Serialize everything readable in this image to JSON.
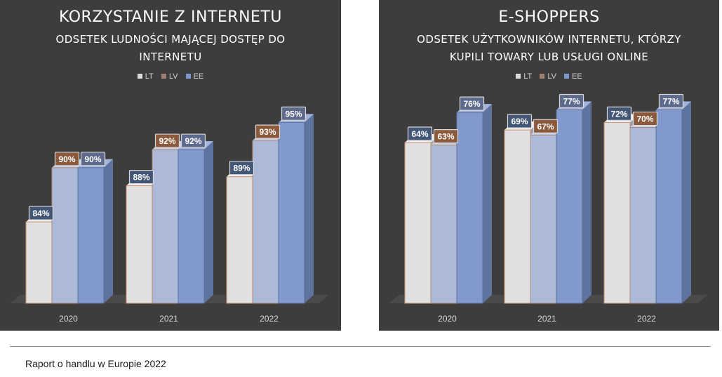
{
  "footer": {
    "source": "Raport o handlu w Europie 2022"
  },
  "colors": {
    "LT": "#dcdcdc",
    "LV": "#a9b7d6",
    "EE": "#7f98cc",
    "LV_label": "#8b5a3c",
    "label_dark": "#3e4c66"
  },
  "chart_data": [
    {
      "type": "bar",
      "title": "KORZYSTANIE Z INTERNETU",
      "subtitle": "ODSETEK LUDNOŚCI MAJĄCEJ DOSTĘP DO INTERNETU",
      "categories": [
        "2020",
        "2021",
        "2022"
      ],
      "series": [
        {
          "name": "LT",
          "values": [
            84,
            88,
            89
          ]
        },
        {
          "name": "LV",
          "values": [
            90,
            92,
            93
          ]
        },
        {
          "name": "EE",
          "values": [
            90,
            92,
            95
          ]
        }
      ],
      "value_suffix": "%",
      "ylim": [
        75,
        100
      ],
      "legend": "top",
      "grid": false,
      "style": "3d-clustered-column"
    },
    {
      "type": "bar",
      "title": "E-SHOPPERS",
      "subtitle": "ODSETEK UŻYTKOWNIKÓW INTERNETU, KTÓRZY KUPILI TOWARY LUB USŁUGI ONLINE",
      "categories": [
        "2020",
        "2021",
        "2022"
      ],
      "series": [
        {
          "name": "LT",
          "values": [
            64,
            69,
            72
          ]
        },
        {
          "name": "LV",
          "values": [
            63,
            67,
            70
          ]
        },
        {
          "name": "EE",
          "values": [
            76,
            77,
            77
          ]
        }
      ],
      "value_suffix": "%",
      "ylim": [
        0,
        90
      ],
      "legend": "top",
      "grid": false,
      "style": "3d-clustered-column"
    }
  ]
}
